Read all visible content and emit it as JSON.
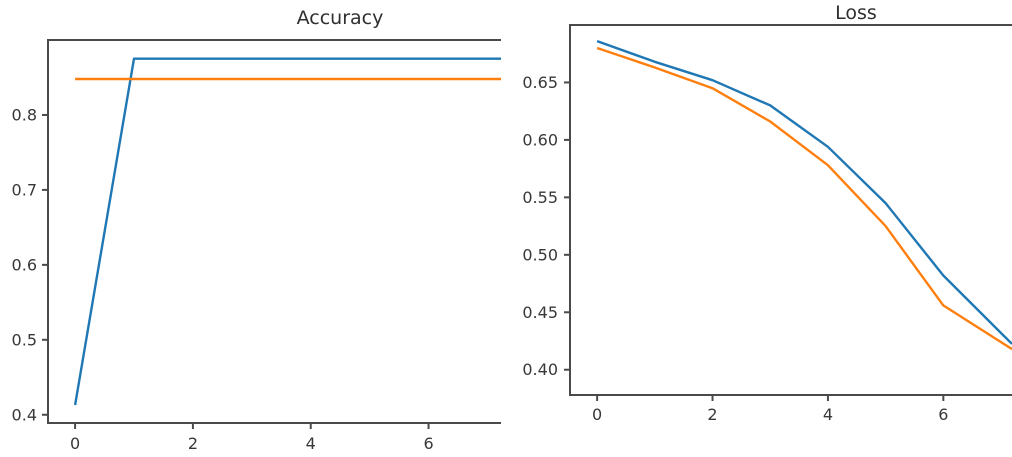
{
  "figure": {
    "background_color": "#ffffff",
    "spine_color": "#4a4a4a",
    "text_color": "#333333"
  },
  "chart_data": [
    {
      "type": "line",
      "title": "Accuracy",
      "xlabel": "",
      "ylabel": "",
      "x": [
        0,
        1,
        2,
        3,
        4,
        5,
        6,
        7
      ],
      "series": [
        {
          "name": "blue-line",
          "color": "#1f77b4",
          "values": [
            0.413,
            0.875,
            0.875,
            0.875,
            0.875,
            0.875,
            0.875,
            0.875
          ]
        },
        {
          "name": "orange-line",
          "color": "#ff7f0e",
          "values": [
            0.848,
            0.848,
            0.848,
            0.848,
            0.848,
            0.848,
            0.848,
            0.848
          ]
        }
      ],
      "xticks": [
        0,
        2,
        4,
        6
      ],
      "xtick_labels": [
        "0",
        "2",
        "4",
        "6"
      ],
      "yticks": [
        0.4,
        0.5,
        0.6,
        0.7,
        0.8
      ],
      "ytick_labels": [
        "0.4",
        "0.5",
        "0.6",
        "0.7",
        "0.8"
      ],
      "xlim": [
        -0.46,
        7.23
      ],
      "ylim": [
        0.389,
        0.9
      ],
      "grid": false,
      "legend": null,
      "clipped_right_edge": true
    },
    {
      "type": "line",
      "title": "Loss",
      "xlabel": "",
      "ylabel": "",
      "x": [
        0,
        1,
        2,
        3,
        4,
        5,
        6,
        7
      ],
      "series": [
        {
          "name": "blue-line",
          "color": "#1f77b4",
          "values": [
            0.686,
            0.668,
            0.652,
            0.63,
            0.594,
            0.545,
            0.482,
            0.432
          ]
        },
        {
          "name": "orange-line",
          "color": "#ff7f0e",
          "values": [
            0.68,
            0.663,
            0.645,
            0.616,
            0.578,
            0.525,
            0.456,
            0.424
          ]
        }
      ],
      "xticks": [
        0,
        2,
        4,
        6
      ],
      "xtick_labels": [
        "0",
        "2",
        "4",
        "6"
      ],
      "yticks": [
        0.4,
        0.45,
        0.5,
        0.55,
        0.6,
        0.65
      ],
      "ytick_labels": [
        "0.40",
        "0.45",
        "0.50",
        "0.55",
        "0.60",
        "0.65"
      ],
      "xlim": [
        -0.47,
        7.19
      ],
      "ylim": [
        0.378,
        0.7
      ],
      "grid": false,
      "legend": null,
      "clipped_right_edge": true
    }
  ]
}
